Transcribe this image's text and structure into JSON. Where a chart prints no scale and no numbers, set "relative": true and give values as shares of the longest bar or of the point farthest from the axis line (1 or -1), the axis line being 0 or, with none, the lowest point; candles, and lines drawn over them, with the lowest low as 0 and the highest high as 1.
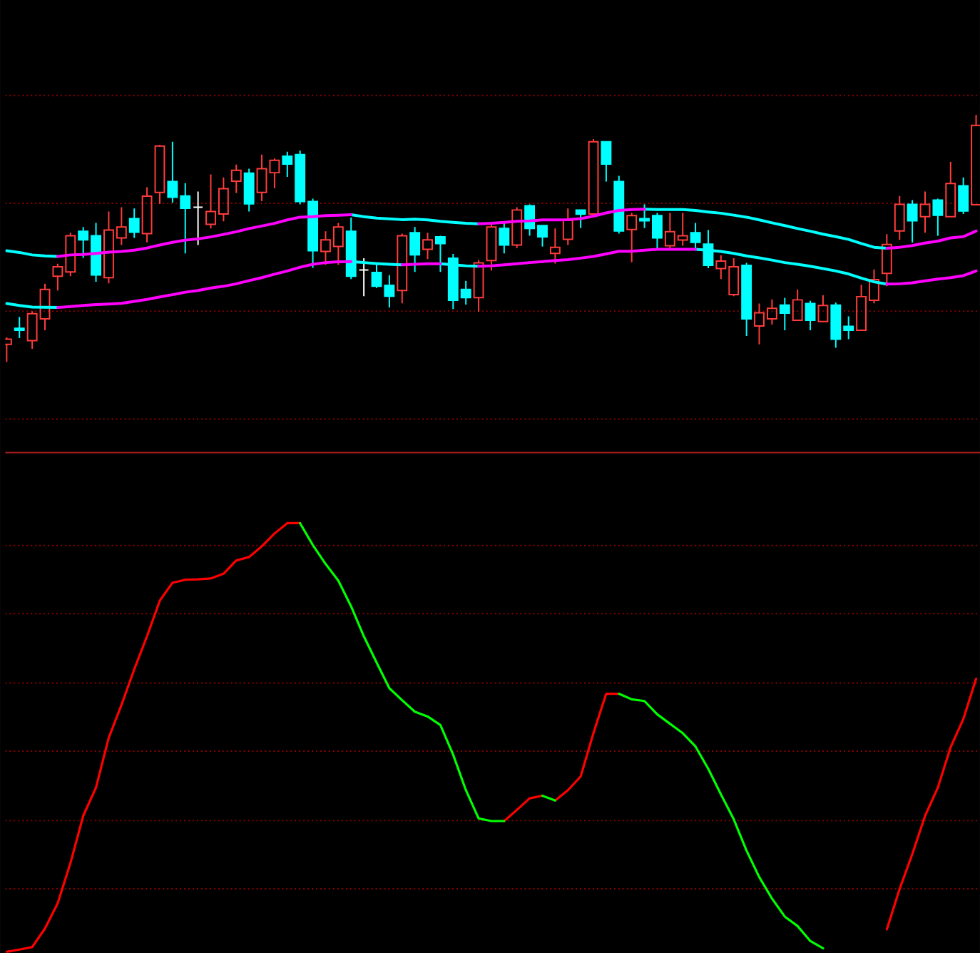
{
  "chart_data": [
    {
      "type": "candlestick",
      "relative": true,
      "categories": [
        null,
        null,
        null,
        null,
        null,
        null,
        null,
        null,
        null,
        null,
        null,
        null,
        null,
        null,
        null,
        null,
        null,
        null,
        null,
        null,
        null,
        null,
        null,
        null,
        null,
        null,
        null,
        null,
        null,
        null,
        null,
        null,
        null,
        null,
        null,
        null,
        null,
        null,
        null,
        null,
        null,
        null,
        null,
        null,
        null,
        null,
        null,
        null,
        null,
        null,
        null,
        null,
        null,
        null,
        null,
        null,
        null,
        null,
        null,
        null,
        null,
        null,
        null,
        null,
        null,
        null,
        null,
        null,
        null,
        null,
        null,
        null,
        null,
        null,
        null,
        null,
        null
      ],
      "ohlc": [
        [
          0.071,
          0.099,
          0,
          0.092
        ],
        [
          0.136,
          0.182,
          0.096,
          0.128
        ],
        [
          0.086,
          0.205,
          0.053,
          0.195
        ],
        [
          0.174,
          0.316,
          0.128,
          0.293
        ],
        [
          0.347,
          0.397,
          0.289,
          0.385
        ],
        [
          0.364,
          0.523,
          0.347,
          0.511
        ],
        [
          0.529,
          0.546,
          0.421,
          0.494
        ],
        [
          0.511,
          0.563,
          0.324,
          0.352
        ],
        [
          0.341,
          0.609,
          0.318,
          0.534
        ],
        [
          0.502,
          0.626,
          0.473,
          0.546
        ],
        [
          0.58,
          0.621,
          0.502,
          0.525
        ],
        [
          0.519,
          0.707,
          0.484,
          0.671
        ],
        [
          0.686,
          0.879,
          0.64,
          0.874
        ],
        [
          0.73,
          0.891,
          0.645,
          0.667
        ],
        [
          0.672,
          0.724,
          0.439,
          0.622
        ],
        [
          0.626,
          0.69,
          0.473,
          0.626
        ],
        [
          0.557,
          0.759,
          0.54,
          0.609
        ],
        [
          0.599,
          0.747,
          0.569,
          0.701
        ],
        [
          0.732,
          0.799,
          0.684,
          0.776
        ],
        [
          0.764,
          0.782,
          0.609,
          0.64
        ],
        [
          0.686,
          0.839,
          0.651,
          0.782
        ],
        [
          0.766,
          0.824,
          0.703,
          0.816
        ],
        [
          0.833,
          0.851,
          0.749,
          0.801
        ],
        [
          0.839,
          0.856,
          0.638,
          0.649
        ],
        [
          0.649,
          0.661,
          0.381,
          0.45
        ],
        [
          0.447,
          0.529,
          0.393,
          0.494
        ],
        [
          0.467,
          0.563,
          0.393,
          0.546
        ],
        [
          0.529,
          0.584,
          0.335,
          0.347
        ],
        [
          0.372,
          0.42,
          0.266,
          0.372
        ],
        [
          0.362,
          0.397,
          0.299,
          0.306
        ],
        [
          0.31,
          0.351,
          0.22,
          0.266
        ],
        [
          0.289,
          0.519,
          0.237,
          0.511
        ],
        [
          0.523,
          0.546,
          0.364,
          0.433
        ],
        [
          0.456,
          0.523,
          0.416,
          0.494
        ],
        [
          0.506,
          0.511,
          0.364,
          0.479
        ],
        [
          0.42,
          0.437,
          0.214,
          0.249
        ],
        [
          0.293,
          0.328,
          0.232,
          0.26
        ],
        [
          0.26,
          0.412,
          0.203,
          0.401
        ],
        [
          0.41,
          0.561,
          0.37,
          0.546
        ],
        [
          0.54,
          0.565,
          0.439,
          0.473
        ],
        [
          0.473,
          0.626,
          0.461,
          0.615
        ],
        [
          0.632,
          0.638,
          0.511,
          0.54
        ],
        [
          0.552,
          0.552,
          0.467,
          0.506
        ],
        [
          0.439,
          0.54,
          0.398,
          0.464
        ],
        [
          0.496,
          0.621,
          0.473,
          0.573
        ],
        [
          0.615,
          0.615,
          0.542,
          0.598
        ],
        [
          0.599,
          0.902,
          0.594,
          0.891
        ],
        [
          0.891,
          0.891,
          0.73,
          0.801
        ],
        [
          0.73,
          0.753,
          0.519,
          0.53
        ],
        [
          0.536,
          0.603,
          0.404,
          0.592
        ],
        [
          0.58,
          0.638,
          0.542,
          0.571
        ],
        [
          0.592,
          0.603,
          0.46,
          0.502
        ],
        [
          0.47,
          0.603,
          0.458,
          0.527
        ],
        [
          0.493,
          0.603,
          0.47,
          0.511
        ],
        [
          0.523,
          0.563,
          0.46,
          0.484
        ],
        [
          0.477,
          0.534,
          0.379,
          0.391
        ],
        [
          0.378,
          0.431,
          0.335,
          0.408
        ],
        [
          0.272,
          0.42,
          0.266,
          0.385
        ],
        [
          0.391,
          0.401,
          0.105,
          0.174
        ],
        [
          0.145,
          0.236,
          0.071,
          0.199
        ],
        [
          0.174,
          0.253,
          0.151,
          0.217
        ],
        [
          0.23,
          0.259,
          0.128,
          0.197
        ],
        [
          0.168,
          0.293,
          0.168,
          0.251
        ],
        [
          0.236,
          0.247,
          0.128,
          0.168
        ],
        [
          0.163,
          0.27,
          0.163,
          0.228
        ],
        [
          0.23,
          0.24,
          0.057,
          0.092
        ],
        [
          0.144,
          0.184,
          0.092,
          0.128
        ],
        [
          0.128,
          0.312,
          0.128,
          0.264
        ],
        [
          0.249,
          0.374,
          0.237,
          0.333
        ],
        [
          0.358,
          0.517,
          0.306,
          0.475
        ],
        [
          0.53,
          0.672,
          0.494,
          0.638
        ],
        [
          0.638,
          0.655,
          0.483,
          0.571
        ],
        [
          0.588,
          0.69,
          0.523,
          0.638
        ],
        [
          0.655,
          0.661,
          0.511,
          0.594
        ],
        [
          0.588,
          0.81,
          0.588,
          0.722
        ],
        [
          0.713,
          0.747,
          0.599,
          0.611
        ],
        [
          0.636,
          1,
          0.636,
          0.958
        ]
      ],
      "colors": [
        "#ff3c3c",
        "#00ffff",
        "#ff3c3c",
        "#ff3c3c",
        "#ff3c3c",
        "#ff3c3c",
        "#00ffff",
        "#00ffff",
        "#ff3c3c",
        "#ff3c3c",
        "#00ffff",
        "#ff3c3c",
        "#ff3c3c",
        "#00ffff",
        "#00ffff",
        "#ffffff",
        "#ff3c3c",
        "#ff3c3c",
        "#ff3c3c",
        "#00ffff",
        "#ff3c3c",
        "#ff3c3c",
        "#00ffff",
        "#00ffff",
        "#00ffff",
        "#ff3c3c",
        "#ff3c3c",
        "#00ffff",
        "#ffffff",
        "#00ffff",
        "#00ffff",
        "#ff3c3c",
        "#00ffff",
        "#ff3c3c",
        "#00ffff",
        "#00ffff",
        "#00ffff",
        "#ff3c3c",
        "#ff3c3c",
        "#00ffff",
        "#ff3c3c",
        "#00ffff",
        "#00ffff",
        "#ff3c3c",
        "#ff3c3c",
        "#00ffff",
        "#ff3c3c",
        "#00ffff",
        "#00ffff",
        "#ff3c3c",
        "#00ffff",
        "#00ffff",
        "#ff3c3c",
        "#ff3c3c",
        "#00ffff",
        "#00ffff",
        "#ff3c3c",
        "#ff3c3c",
        "#00ffff",
        "#ff3c3c",
        "#ff3c3c",
        "#00ffff",
        "#ff3c3c",
        "#00ffff",
        "#ff3c3c",
        "#00ffff",
        "#00ffff",
        "#ff3c3c",
        "#ff3c3c",
        "#ff3c3c",
        "#ff3c3c",
        "#00ffff",
        "#ff3c3c",
        "#00ffff",
        "#ff3c3c",
        "#00ffff",
        "#ff3c3c"
      ],
      "series": [
        {
          "type": "line",
          "color": "#00ffff",
          "values": [
            0.45,
            0.443,
            0.433,
            0.429,
            0.427,
            null,
            null,
            null,
            null,
            null,
            null,
            null,
            null,
            null,
            null,
            null,
            null,
            null,
            null,
            null,
            null,
            null,
            null,
            null,
            null,
            null,
            null,
            0.596,
            0.588,
            0.582,
            0.579,
            0.576,
            0.578,
            0.575,
            0.569,
            0.565,
            0.561,
            0.559,
            null,
            null,
            null,
            null,
            null,
            null,
            null,
            null,
            null,
            null,
            null,
            null,
            0.618,
            0.617,
            0.617,
            0.617,
            0.613,
            0.607,
            0.602,
            0.594,
            0.586,
            0.575,
            0.563,
            0.552,
            0.54,
            0.529,
            0.517,
            0.507,
            0.496,
            0.479,
            0.464,
            0.46,
            null,
            null,
            null,
            null,
            null,
            null,
            null
          ]
        },
        {
          "type": "line",
          "color": "#ff00ff",
          "values": [
            null,
            null,
            null,
            null,
            0.427,
            0.433,
            0.435,
            0.439,
            0.444,
            0.447,
            0.452,
            0.461,
            0.473,
            0.484,
            0.493,
            0.498,
            0.506,
            0.516,
            0.527,
            0.54,
            0.55,
            0.561,
            0.575,
            0.586,
            0.588,
            0.592,
            0.594,
            0.596,
            null,
            null,
            null,
            null,
            null,
            null,
            null,
            null,
            null,
            0.559,
            0.561,
            0.565,
            0.569,
            0.571,
            0.575,
            0.575,
            0.576,
            0.58,
            0.59,
            0.603,
            0.613,
            0.617,
            0.618,
            null,
            null,
            null,
            null,
            null,
            null,
            null,
            null,
            null,
            null,
            null,
            null,
            null,
            null,
            null,
            null,
            null,
            null,
            0.46,
            0.464,
            0.471,
            0.481,
            0.489,
            0.502,
            0.507,
            0.53
          ]
        },
        {
          "type": "line",
          "color": "#00ffff",
          "values": [
            0.236,
            0.228,
            0.222,
            0.221,
            0.22,
            null,
            null,
            null,
            null,
            null,
            null,
            null,
            null,
            null,
            null,
            null,
            null,
            null,
            null,
            null,
            null,
            null,
            null,
            null,
            null,
            null,
            null,
            0.406,
            0.402,
            0.398,
            0.395,
            0.393,
            null,
            null,
            0.397,
            0.393,
            0.389,
            0.387,
            null,
            null,
            null,
            null,
            null,
            null,
            null,
            null,
            null,
            null,
            null,
            null,
            null,
            null,
            null,
            null,
            0.456,
            0.452,
            0.447,
            0.439,
            0.429,
            0.421,
            0.412,
            0.402,
            0.395,
            0.387,
            0.378,
            0.368,
            0.356,
            0.339,
            0.324,
            0.315,
            null,
            null,
            null,
            null,
            null,
            null,
            null
          ]
        },
        {
          "type": "line",
          "color": "#ff00ff",
          "values": [
            null,
            null,
            null,
            null,
            0.22,
            0.224,
            0.228,
            0.232,
            0.234,
            0.237,
            0.245,
            0.253,
            0.263,
            0.272,
            0.282,
            0.289,
            0.299,
            0.306,
            0.316,
            0.329,
            0.341,
            0.355,
            0.368,
            0.383,
            0.395,
            0.402,
            0.405,
            0.406,
            null,
            null,
            null,
            0.393,
            0.395,
            0.397,
            0.397,
            null,
            null,
            0.387,
            0.389,
            0.393,
            0.397,
            0.402,
            0.406,
            0.41,
            0.414,
            0.42,
            0.427,
            0.437,
            0.448,
            0.448,
            0.452,
            0.456,
            0.456,
            0.456,
            0.456,
            null,
            null,
            null,
            null,
            null,
            null,
            null,
            null,
            null,
            null,
            null,
            null,
            null,
            null,
            0.315,
            0.316,
            0.32,
            0.328,
            0.335,
            0.341,
            0.349,
            0.368
          ]
        }
      ],
      "ref_lines": [
        {
          "axis": "y",
          "value": 1.079,
          "color": "#8c0000",
          "line_style": "dotted"
        },
        {
          "axis": "y",
          "value": 0.642,
          "color": "#8c0000",
          "line_style": "dotted"
        },
        {
          "axis": "y",
          "value": 0.205,
          "color": "#8c0000",
          "line_style": "dotted"
        },
        {
          "axis": "y",
          "value": -0.232,
          "color": "#8c0000",
          "line_style": "dotted"
        }
      ]
    },
    {
      "type": "line",
      "relative": true,
      "categories": [
        null,
        null,
        null,
        null,
        null,
        null,
        null,
        null,
        null,
        null,
        null,
        null,
        null,
        null,
        null,
        null,
        null,
        null,
        null,
        null,
        null,
        null,
        null,
        null,
        null,
        null,
        null,
        null,
        null,
        null,
        null,
        null,
        null,
        null,
        null,
        null,
        null,
        null,
        null,
        null,
        null,
        null,
        null,
        null,
        null,
        null,
        null,
        null,
        null,
        null,
        null,
        null,
        null,
        null,
        null,
        null,
        null,
        null,
        null,
        null,
        null,
        null,
        null,
        null,
        null,
        null,
        null,
        null,
        null,
        null,
        null,
        null,
        null,
        null,
        null,
        null,
        null
      ],
      "series": [
        {
          "type": "line",
          "color": "#ff0000",
          "values": [
            0,
            0.005,
            0.011,
            0.054,
            0.113,
            0.207,
            0.317,
            0.383,
            0.499,
            0.576,
            0.659,
            0.736,
            0.819,
            0.861,
            0.868,
            0.869,
            0.871,
            0.882,
            0.913,
            0.921,
            0.946,
            0.976,
            1,
            1,
            null,
            null,
            null,
            null,
            null,
            null,
            null,
            null,
            null,
            null,
            null,
            null,
            null,
            null,
            null,
            null,
            null,
            null,
            null,
            0.353,
            0.377,
            0.409,
            0.51,
            0.602,
            0.602,
            null,
            null,
            null,
            null,
            null,
            null,
            null,
            null,
            null,
            null,
            null,
            null,
            null,
            null,
            null,
            null,
            null,
            null,
            null,
            null,
            0.052,
            0.146,
            0.228,
            0.317,
            0.383,
            0.477,
            0.543,
            0.637
          ]
        },
        {
          "type": "line",
          "color": "#ff0000",
          "values": [
            null,
            null,
            null,
            null,
            null,
            null,
            null,
            null,
            null,
            null,
            null,
            null,
            null,
            null,
            null,
            null,
            null,
            null,
            null,
            null,
            null,
            null,
            null,
            null,
            null,
            null,
            null,
            null,
            null,
            null,
            null,
            null,
            null,
            null,
            null,
            null,
            null,
            null,
            null,
            0.305,
            0.331,
            0.358,
            0.364,
            null,
            null,
            null,
            null,
            null,
            null,
            null,
            null,
            null,
            null,
            null,
            null,
            null,
            null,
            null,
            null,
            null,
            null,
            null,
            null,
            null,
            null,
            null,
            null,
            null,
            null,
            null,
            null,
            null,
            null,
            null,
            null,
            null,
            null
          ]
        },
        {
          "type": "line",
          "color": "#00ff00",
          "values": [
            null,
            null,
            null,
            null,
            null,
            null,
            null,
            null,
            null,
            null,
            null,
            null,
            null,
            null,
            null,
            null,
            null,
            null,
            null,
            null,
            null,
            null,
            null,
            1,
            0.949,
            0.905,
            0.866,
            0.806,
            0.736,
            0.675,
            0.615,
            0.587,
            0.56,
            0.549,
            0.529,
            0.46,
            0.377,
            0.311,
            0.305,
            0.305,
            null,
            null,
            0.364,
            0.353,
            null,
            null,
            null,
            null,
            0.602,
            0.589,
            0.585,
            0.554,
            0.532,
            0.51,
            0.479,
            0.427,
            0.367,
            0.309,
            0.236,
            0.174,
            0.124,
            0.082,
            0.06,
            0.025,
            0.008,
            null,
            null,
            null,
            null,
            null,
            null,
            null,
            null,
            null,
            null,
            null,
            null
          ]
        }
      ],
      "ref_lines": [
        {
          "axis": "y",
          "value": 0.948,
          "color": "#8c0000",
          "line_style": "dotted"
        },
        {
          "axis": "y",
          "value": 0.789,
          "color": "#8c0000",
          "line_style": "dotted"
        },
        {
          "axis": "y",
          "value": 0.627,
          "color": "#8c0000",
          "line_style": "dotted"
        },
        {
          "axis": "y",
          "value": 0.468,
          "color": "#8c0000",
          "line_style": "dotted"
        },
        {
          "axis": "y",
          "value": 0.306,
          "color": "#8c0000",
          "line_style": "dotted"
        },
        {
          "axis": "y",
          "value": 0.147,
          "color": "#8c0000",
          "line_style": "dotted"
        }
      ]
    }
  ]
}
